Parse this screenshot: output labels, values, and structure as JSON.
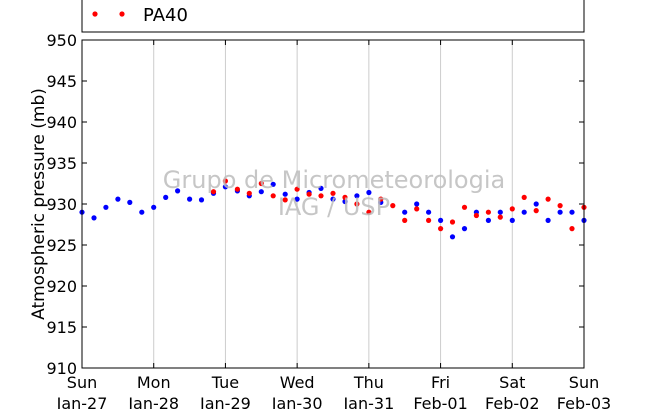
{
  "chart_data": {
    "type": "scatter",
    "ylabel": "Atmospheric pressure (mb)",
    "ylim": [
      910,
      950
    ],
    "y_ticks": [
      "910",
      "915",
      "920",
      "925",
      "930",
      "935",
      "940",
      "945",
      "950"
    ],
    "x_ticks": [
      {
        "day": "Sun",
        "date": "Jan-27"
      },
      {
        "day": "Mon",
        "date": "Jan-28"
      },
      {
        "day": "Tue",
        "date": "Jan-29"
      },
      {
        "day": "Wed",
        "date": "Jan-30"
      },
      {
        "day": "Thu",
        "date": "Jan-31"
      },
      {
        "day": "Fri",
        "date": "Feb-01"
      },
      {
        "day": "Sat",
        "date": "Feb-02"
      },
      {
        "day": "Sun",
        "date": "Feb-03"
      }
    ],
    "xlim": [
      "2013-01-27 00:00",
      "2013-02-03 00:00"
    ],
    "grid": "vertical",
    "legend": {
      "placement": "top",
      "visible_entry": "PA40"
    },
    "watermark": [
      "Grupo de Micrometeorologia",
      "IAG / USP"
    ],
    "series": [
      {
        "name": "",
        "color": "#0000ff",
        "points": [
          [
            "2013-01-27 00:00",
            929.0
          ],
          [
            "2013-01-27 04:00",
            928.3
          ],
          [
            "2013-01-27 08:00",
            929.6
          ],
          [
            "2013-01-27 12:00",
            930.6
          ],
          [
            "2013-01-27 16:00",
            930.2
          ],
          [
            "2013-01-27 20:00",
            929.0
          ],
          [
            "2013-01-28 00:00",
            929.6
          ],
          [
            "2013-01-28 04:00",
            930.8
          ],
          [
            "2013-01-28 08:00",
            931.6
          ],
          [
            "2013-01-28 12:00",
            930.6
          ],
          [
            "2013-01-28 16:00",
            930.5
          ],
          [
            "2013-01-28 20:00",
            931.3
          ],
          [
            "2013-01-29 00:00",
            932.1
          ],
          [
            "2013-01-29 04:00",
            931.6
          ],
          [
            "2013-01-29 08:00",
            931.0
          ],
          [
            "2013-01-29 12:00",
            931.5
          ],
          [
            "2013-01-29 16:00",
            932.4
          ],
          [
            "2013-01-29 20:00",
            931.2
          ],
          [
            "2013-01-30 00:00",
            930.6
          ],
          [
            "2013-01-30 04:00",
            931.4
          ],
          [
            "2013-01-30 08:00",
            931.9
          ],
          [
            "2013-01-30 12:00",
            930.6
          ],
          [
            "2013-01-30 16:00",
            930.3
          ],
          [
            "2013-01-30 20:00",
            931.0
          ],
          [
            "2013-01-31 00:00",
            931.4
          ],
          [
            "2013-01-31 04:00",
            930.2
          ],
          [
            "2013-01-31 12:00",
            929.0
          ],
          [
            "2013-01-31 16:00",
            930.0
          ],
          [
            "2013-01-31 20:00",
            929.0
          ],
          [
            "2013-02-01 00:00",
            928.0
          ],
          [
            "2013-02-01 04:00",
            926.0
          ],
          [
            "2013-02-01 08:00",
            927.0
          ],
          [
            "2013-02-01 12:00",
            929.0
          ],
          [
            "2013-02-01 16:00",
            928.0
          ],
          [
            "2013-02-01 20:00",
            929.0
          ],
          [
            "2013-02-02 00:00",
            928.0
          ],
          [
            "2013-02-02 04:00",
            929.0
          ],
          [
            "2013-02-02 08:00",
            930.0
          ],
          [
            "2013-02-02 12:00",
            928.0
          ],
          [
            "2013-02-02 16:00",
            929.0
          ],
          [
            "2013-02-02 20:00",
            929.0
          ],
          [
            "2013-02-03 00:00",
            928.0
          ]
        ]
      },
      {
        "name": "PA40",
        "color": "#ff0000",
        "points": [
          [
            "2013-01-28 20:00",
            931.5
          ],
          [
            "2013-01-29 00:00",
            932.8
          ],
          [
            "2013-01-29 04:00",
            931.8
          ],
          [
            "2013-01-29 08:00",
            931.3
          ],
          [
            "2013-01-29 12:00",
            932.5
          ],
          [
            "2013-01-29 16:00",
            931.0
          ],
          [
            "2013-01-29 20:00",
            930.5
          ],
          [
            "2013-01-30 00:00",
            931.8
          ],
          [
            "2013-01-30 04:00",
            931.2
          ],
          [
            "2013-01-30 08:00",
            931.0
          ],
          [
            "2013-01-30 12:00",
            931.3
          ],
          [
            "2013-01-30 16:00",
            930.8
          ],
          [
            "2013-01-30 20:00",
            930.0
          ],
          [
            "2013-01-31 00:00",
            929.0
          ],
          [
            "2013-01-31 04:00",
            930.6
          ],
          [
            "2013-01-31 08:00",
            929.8
          ],
          [
            "2013-01-31 12:00",
            928.0
          ],
          [
            "2013-01-31 16:00",
            929.4
          ],
          [
            "2013-01-31 20:00",
            928.0
          ],
          [
            "2013-02-01 00:00",
            927.0
          ],
          [
            "2013-02-01 04:00",
            927.8
          ],
          [
            "2013-02-01 08:00",
            929.6
          ],
          [
            "2013-02-01 12:00",
            928.6
          ],
          [
            "2013-02-01 16:00",
            929.0
          ],
          [
            "2013-02-01 20:00",
            928.4
          ],
          [
            "2013-02-02 00:00",
            929.4
          ],
          [
            "2013-02-02 04:00",
            930.8
          ],
          [
            "2013-02-02 08:00",
            929.2
          ],
          [
            "2013-02-02 12:00",
            930.6
          ],
          [
            "2013-02-02 16:00",
            929.8
          ],
          [
            "2013-02-02 20:00",
            927.0
          ],
          [
            "2013-02-03 00:00",
            929.6
          ]
        ]
      }
    ]
  }
}
